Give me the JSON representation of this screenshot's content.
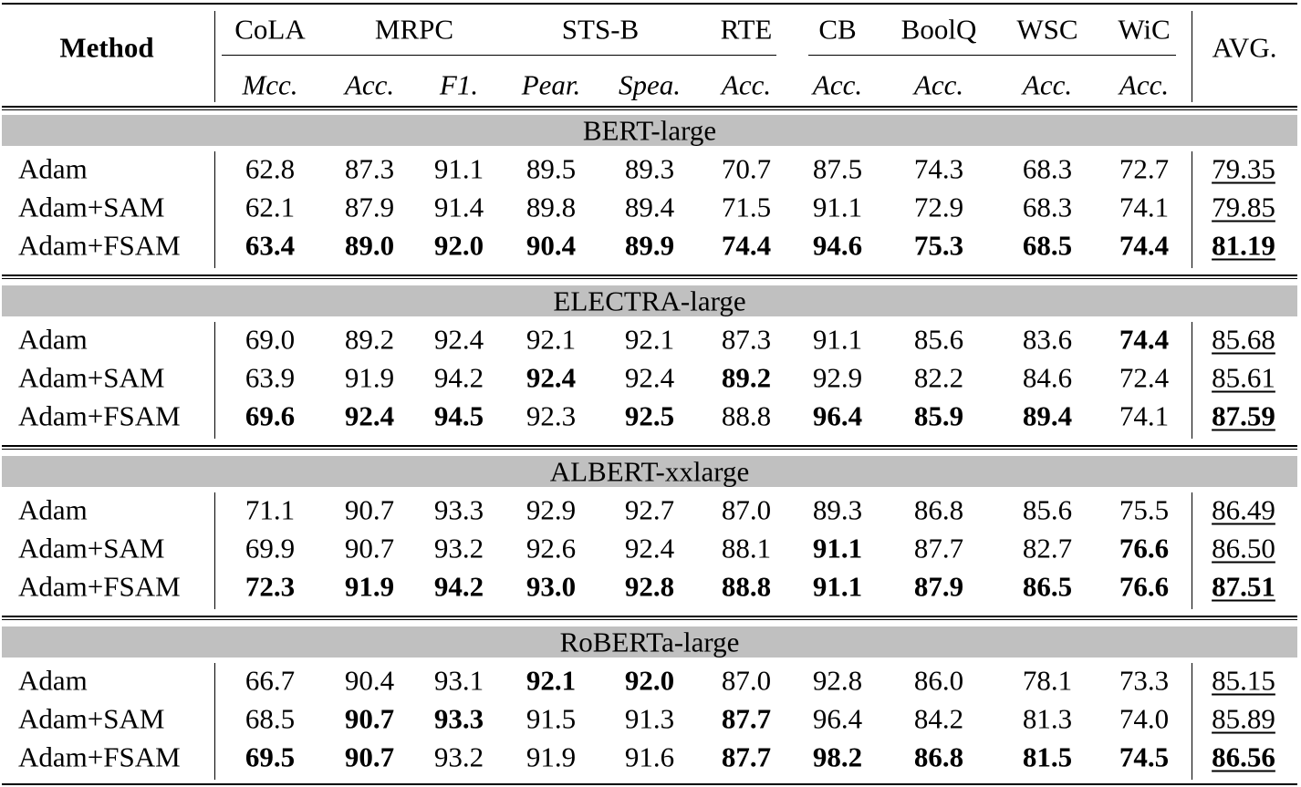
{
  "columns": {
    "method": "Method",
    "tasks": [
      {
        "name": "CoLA",
        "metrics": [
          "Mcc."
        ]
      },
      {
        "name": "MRPC",
        "metrics": [
          "Acc.",
          "F1."
        ]
      },
      {
        "name": "STS-B",
        "metrics": [
          "Pear.",
          "Spea."
        ]
      },
      {
        "name": "RTE",
        "metrics": [
          "Acc."
        ]
      },
      {
        "name": "CB",
        "metrics": [
          "Acc."
        ]
      },
      {
        "name": "BoolQ",
        "metrics": [
          "Acc."
        ]
      },
      {
        "name": "WSC",
        "metrics": [
          "Acc."
        ]
      },
      {
        "name": "WiC",
        "metrics": [
          "Acc."
        ]
      }
    ],
    "avg": "AVG."
  },
  "groups": [
    {
      "name": "BERT-large",
      "rows": [
        {
          "method": "Adam",
          "values": [
            "62.8",
            "87.3",
            "91.1",
            "89.5",
            "89.3",
            "70.7",
            "87.5",
            "74.3",
            "68.3",
            "72.7"
          ],
          "bold": [],
          "avg": "79.35",
          "avg_bold": false
        },
        {
          "method": "Adam+SAM",
          "values": [
            "62.1",
            "87.9",
            "91.4",
            "89.8",
            "89.4",
            "71.5",
            "91.1",
            "72.9",
            "68.3",
            "74.1"
          ],
          "bold": [],
          "avg": "79.85",
          "avg_bold": false
        },
        {
          "method": "Adam+FSAM",
          "values": [
            "63.4",
            "89.0",
            "92.0",
            "90.4",
            "89.9",
            "74.4",
            "94.6",
            "75.3",
            "68.5",
            "74.4"
          ],
          "bold": [
            0,
            1,
            2,
            3,
            4,
            5,
            6,
            7,
            8,
            9
          ],
          "avg": "81.19",
          "avg_bold": true
        }
      ]
    },
    {
      "name": "ELECTRA-large",
      "rows": [
        {
          "method": "Adam",
          "values": [
            "69.0",
            "89.2",
            "92.4",
            "92.1",
            "92.1",
            "87.3",
            "91.1",
            "85.6",
            "83.6",
            "74.4"
          ],
          "bold": [
            9
          ],
          "avg": "85.68",
          "avg_bold": false
        },
        {
          "method": "Adam+SAM",
          "values": [
            "63.9",
            "91.9",
            "94.2",
            "92.4",
            "92.4",
            "89.2",
            "92.9",
            "82.2",
            "84.6",
            "72.4"
          ],
          "bold": [
            3,
            5
          ],
          "avg": "85.61",
          "avg_bold": false
        },
        {
          "method": "Adam+FSAM",
          "values": [
            "69.6",
            "92.4",
            "94.5",
            "92.3",
            "92.5",
            "88.8",
            "96.4",
            "85.9",
            "89.4",
            "74.1"
          ],
          "bold": [
            0,
            1,
            2,
            4,
            6,
            7,
            8
          ],
          "avg": "87.59",
          "avg_bold": true
        }
      ]
    },
    {
      "name": "ALBERT-xxlarge",
      "rows": [
        {
          "method": "Adam",
          "values": [
            "71.1",
            "90.7",
            "93.3",
            "92.9",
            "92.7",
            "87.0",
            "89.3",
            "86.8",
            "85.6",
            "75.5"
          ],
          "bold": [],
          "avg": "86.49",
          "avg_bold": false
        },
        {
          "method": "Adam+SAM",
          "values": [
            "69.9",
            "90.7",
            "93.2",
            "92.6",
            "92.4",
            "88.1",
            "91.1",
            "87.7",
            "82.7",
            "76.6"
          ],
          "bold": [
            6,
            9
          ],
          "avg": "86.50",
          "avg_bold": false
        },
        {
          "method": "Adam+FSAM",
          "values": [
            "72.3",
            "91.9",
            "94.2",
            "93.0",
            "92.8",
            "88.8",
            "91.1",
            "87.9",
            "86.5",
            "76.6"
          ],
          "bold": [
            0,
            1,
            2,
            3,
            4,
            5,
            6,
            7,
            8,
            9
          ],
          "avg": "87.51",
          "avg_bold": true
        }
      ]
    },
    {
      "name": "RoBERTa-large",
      "rows": [
        {
          "method": "Adam",
          "values": [
            "66.7",
            "90.4",
            "93.1",
            "92.1",
            "92.0",
            "87.0",
            "92.8",
            "86.0",
            "78.1",
            "73.3"
          ],
          "bold": [
            3,
            4
          ],
          "avg": "85.15",
          "avg_bold": false
        },
        {
          "method": "Adam+SAM",
          "values": [
            "68.5",
            "90.7",
            "93.3",
            "91.5",
            "91.3",
            "87.7",
            "96.4",
            "84.2",
            "81.3",
            "74.0"
          ],
          "bold": [
            1,
            2,
            5
          ],
          "avg": "85.89",
          "avg_bold": false
        },
        {
          "method": "Adam+FSAM",
          "values": [
            "69.5",
            "90.7",
            "93.2",
            "91.9",
            "91.6",
            "87.7",
            "98.2",
            "86.8",
            "81.5",
            "74.5"
          ],
          "bold": [
            0,
            1,
            5,
            6,
            7,
            8,
            9
          ],
          "avg": "86.56",
          "avg_bold": true
        }
      ]
    }
  ]
}
